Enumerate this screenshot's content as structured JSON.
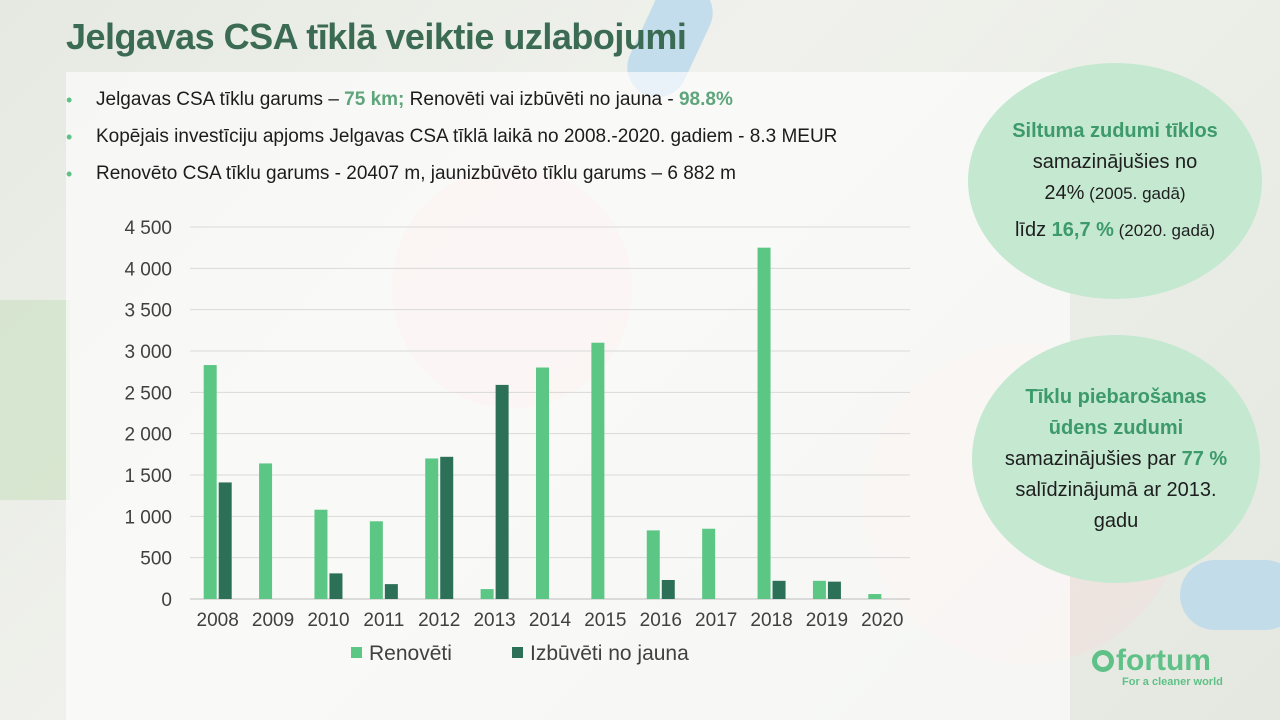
{
  "title": "Jelgavas CSA tīklā veiktie uzlabojumi",
  "bullets": {
    "b1_a": "Jelgavas CSA tīklu garums – ",
    "b1_b": "75 km;",
    "b1_c": " Renovēti vai izbūvēti no jauna - ",
    "b1_d": "98.8%",
    "b2": "Kopējais investīciju apjoms Jelgavas CSA tīklā laikā no 2008.-2020. gadiem - 8.3 MEUR",
    "b3": "Renovēto CSA tīklu garums - 20407 m, jaunizbūvēto tīklu garums – 6 882 m"
  },
  "bubble1": {
    "l1": "Siltuma zudumi tīklos",
    "l2": "samazinājušies no",
    "l3a": "24%",
    "l3b": " (2005. gadā)",
    "l4a": "līdz ",
    "l4b": "16,7 %",
    "l4c": " (2020. gadā)"
  },
  "bubble2": {
    "l1": "Tīklu piebarošanas",
    "l2": "ūdens zudumi",
    "l3a": "samazinājušies par ",
    "l3b": "77 %",
    "l4": "salīdzinājumā ar 2013.",
    "l5": "gadu"
  },
  "logo": {
    "word": "fortum",
    "tagline": "For a cleaner world"
  },
  "colors": {
    "renoveti": "#5cc684",
    "izbuveti": "#2c7157",
    "accent": "#3b6b52"
  },
  "chart_data": {
    "type": "bar",
    "categories": [
      "2008",
      "2009",
      "2010",
      "2011",
      "2012",
      "2013",
      "2014",
      "2015",
      "2016",
      "2017",
      "2018",
      "2019",
      "2020"
    ],
    "series": [
      {
        "name": "Renovēti",
        "values": [
          2830,
          1640,
          1080,
          940,
          1700,
          120,
          2800,
          3100,
          830,
          850,
          4250,
          220,
          60
        ]
      },
      {
        "name": "Izbūvēti no jauna",
        "values": [
          1410,
          0,
          310,
          180,
          1720,
          2590,
          0,
          0,
          230,
          0,
          220,
          210,
          0
        ]
      }
    ],
    "ylim": [
      0,
      4500
    ],
    "yticks": [
      0,
      500,
      1000,
      1500,
      2000,
      2500,
      3000,
      3500,
      4000,
      4500
    ],
    "ytick_labels": [
      "0",
      "500",
      "1 000",
      "1 500",
      "2 000",
      "2 500",
      "3 000",
      "3 500",
      "4 000",
      "4 500"
    ],
    "grid": true,
    "legend_position": "bottom"
  }
}
